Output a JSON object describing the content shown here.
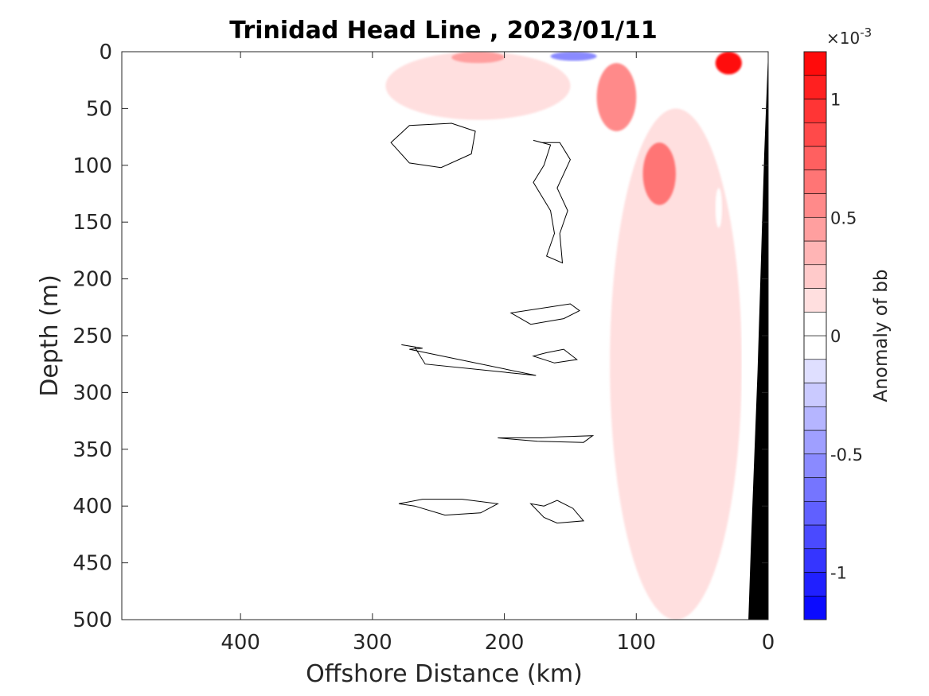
{
  "chart_data": {
    "type": "heatmap",
    "subtype": "filled-contour section",
    "title": "Trinidad Head Line , 2023/01/11",
    "xlabel": "Offshore Distance (km)",
    "ylabel": "Depth (m)",
    "xlim": [
      490,
      0
    ],
    "ylim": [
      500,
      0
    ],
    "x_direction": "reversed",
    "y_direction": "reversed (depth increases downward)",
    "xticks": [
      400,
      300,
      200,
      100,
      0
    ],
    "xtick_labels": [
      "400",
      "300",
      "200",
      "100",
      "0"
    ],
    "yticks": [
      0,
      50,
      100,
      150,
      200,
      250,
      300,
      350,
      400,
      450,
      500
    ],
    "ytick_labels": [
      "0",
      "50",
      "100",
      "150",
      "200",
      "250",
      "300",
      "350",
      "400",
      "450",
      "500"
    ],
    "grid": false,
    "colorbar": {
      "label": "Anomaly of bb",
      "exponent_label": "×10",
      "exponent_power": "-3",
      "range": [
        -0.0012,
        0.0012
      ],
      "levels": 24,
      "ticks": [
        -0.001,
        -0.0005,
        0,
        0.0005,
        0.001
      ],
      "tick_labels": [
        "-1",
        "-0.5",
        "0",
        "0.5",
        "1"
      ],
      "colormap": "blue-white-red (diverging)",
      "color_negative_max": "#0000ff",
      "color_zero": "#ffffff",
      "color_positive_max": "#ff0000"
    },
    "bathymetry_mask_color": "#000000",
    "contour_line_color": "#000000",
    "regions": [
      {
        "feature": "positive anomaly, surface near coast",
        "x_range_km": [
          40,
          20
        ],
        "depth_range_m": [
          0,
          20
        ],
        "value": 0.0011
      },
      {
        "feature": "positive anomaly, surface offshore",
        "x_range_km": [
          240,
          200
        ],
        "depth_range_m": [
          0,
          10
        ],
        "value": 0.0004
      },
      {
        "feature": "negative anomaly, surface",
        "x_range_km": [
          165,
          130
        ],
        "depth_range_m": [
          0,
          8
        ],
        "value": -0.0005
      },
      {
        "feature": "positive anomaly core, shallow",
        "x_range_km": [
          130,
          100
        ],
        "depth_range_m": [
          10,
          70
        ],
        "value": 0.00055
      },
      {
        "feature": "positive anomaly core, subsurface",
        "x_range_km": [
          95,
          70
        ],
        "depth_range_m": [
          80,
          135
        ],
        "value": 0.0006
      },
      {
        "feature": "weak positive anomaly band",
        "x_range_km": [
          120,
          20
        ],
        "depth_range_m": [
          50,
          500
        ],
        "value": 0.0001
      },
      {
        "feature": "weak positive anomaly offshore near-surface",
        "x_range_km": [
          290,
          150
        ],
        "depth_range_m": [
          0,
          60
        ],
        "value": 0.0001
      },
      {
        "feature": "weak negative anomaly",
        "x_range_km": [
          250,
          225
        ],
        "depth_range_m": [
          398,
          403
        ],
        "value": -0.0001
      },
      {
        "feature": "weak negative anomaly near coast",
        "x_range_km": [
          40,
          35
        ],
        "depth_range_m": [
          120,
          155
        ],
        "value": -0.0001
      }
    ]
  }
}
